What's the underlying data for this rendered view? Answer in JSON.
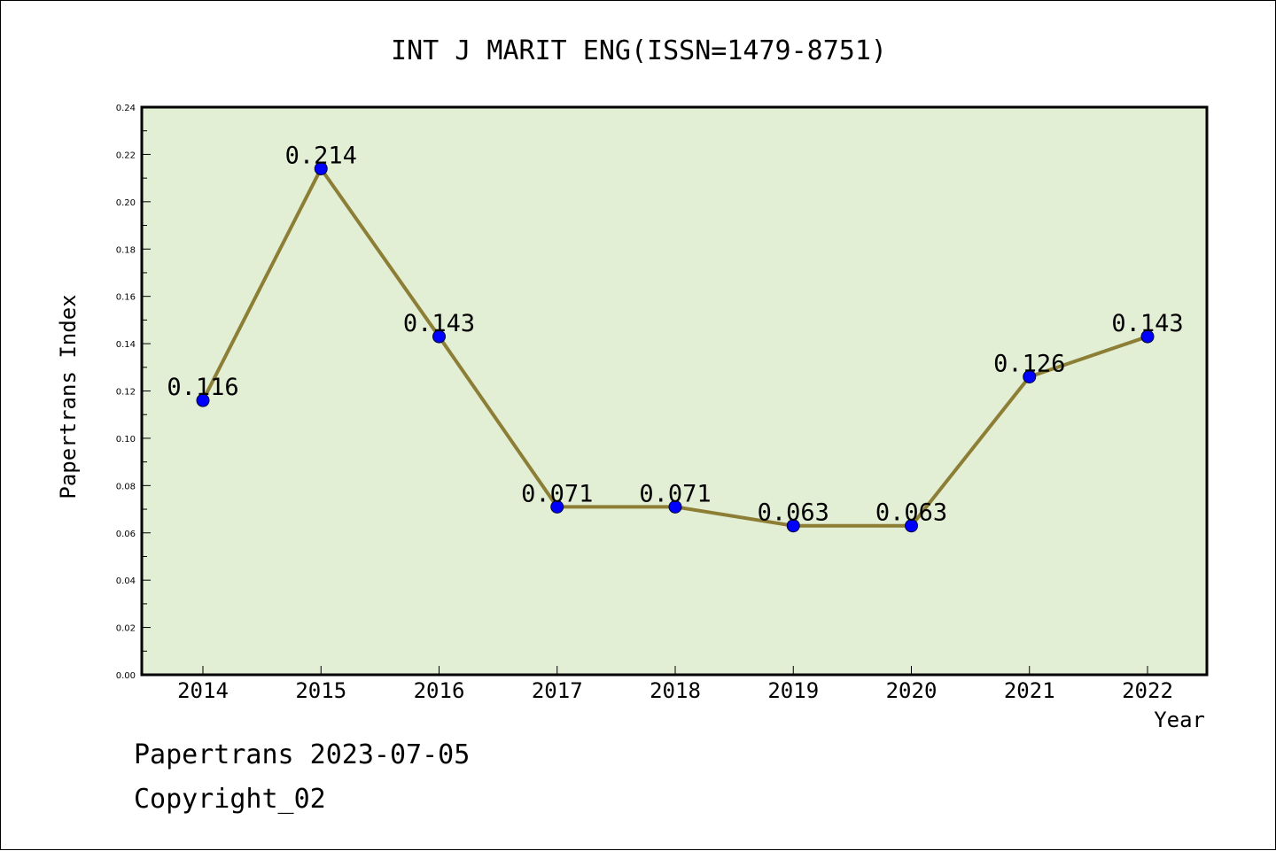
{
  "chart_data": {
    "type": "line",
    "title": "INT J MARIT ENG(ISSN=1479-8751)",
    "xlabel": "Year",
    "ylabel": "Papertrans Index",
    "categories": [
      "2014",
      "2015",
      "2016",
      "2017",
      "2018",
      "2019",
      "2020",
      "2021",
      "2022"
    ],
    "series": [
      {
        "name": "Papertrans Index",
        "values": [
          0.116,
          0.214,
          0.143,
          0.071,
          0.071,
          0.063,
          0.063,
          0.126,
          0.143
        ],
        "labels": [
          "0.116",
          "0.214",
          "0.143",
          "0.071",
          "0.071",
          "0.063",
          "0.063",
          "0.126",
          "0.143"
        ]
      }
    ],
    "ylim": [
      0,
      0.24
    ],
    "yticks": [
      "0.00",
      "0.02",
      "0.04",
      "0.06",
      "0.08",
      "0.10",
      "0.12",
      "0.14",
      "0.16",
      "0.18",
      "0.20",
      "0.22",
      "0.24"
    ],
    "grid": false,
    "colors": {
      "plot_background": "#e2efd5",
      "line": "#8c7e35",
      "marker": "#0000ff"
    }
  },
  "footer": {
    "line1": "Papertrans 2023-07-05",
    "line2": "Copyright_02"
  }
}
